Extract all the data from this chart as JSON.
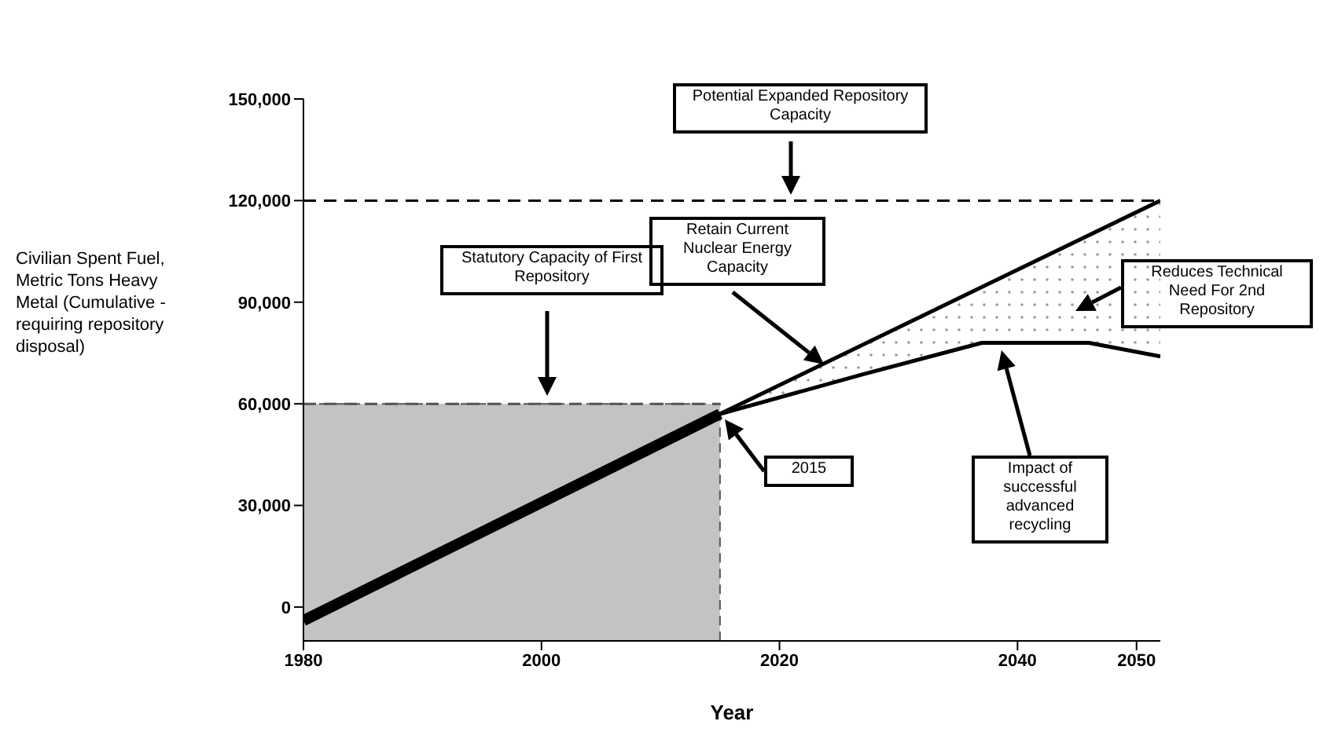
{
  "chart_data": {
    "type": "line",
    "xlabel": "Year",
    "ylabel": "Civilian Spent Fuel, Metric Tons Heavy Metal (Cumulative - requiring repository disposal)",
    "xlim": [
      1980,
      2052
    ],
    "xticks": [
      1980,
      2000,
      2020,
      2040,
      2050
    ],
    "ylim": [
      -10000,
      150000
    ],
    "yticks": [
      {
        "value": 0,
        "label": "0"
      },
      {
        "value": 30000,
        "label": "30,000"
      },
      {
        "value": 60000,
        "label": "60,000"
      },
      {
        "value": 90000,
        "label": "90,000"
      },
      {
        "value": 120000,
        "label": "120,000"
      },
      {
        "value": 150000,
        "label": "150,000"
      }
    ],
    "grid": false,
    "legend": false,
    "marker": "none",
    "series": [
      {
        "color": "#000000",
        "x": [
          1980,
          2015
        ],
        "values": [
          -4000,
          57000
        ]
      },
      {
        "color": "#000000",
        "x": [
          2015,
          2052
        ],
        "values": [
          57000,
          120000
        ]
      },
      {
        "color": "#000000",
        "x": [
          2015,
          2027,
          2037,
          2046,
          2052
        ],
        "values": [
          57000,
          68700,
          78000,
          78000,
          74000
        ],
        "lower": [
          57000,
          68700,
          78000,
          78000,
          74000
        ],
        "upper": [
          57000,
          77400,
          94500,
          109800,
          120000
        ]
      }
    ],
    "ref_lines": [
      {
        "axis": "y",
        "value": 60000,
        "line_style": "dashed",
        "color": "#555555"
      },
      {
        "axis": "y",
        "value": 120000,
        "label": "Potential Expanded Repository Capacity",
        "line_style": "dashed",
        "color": "#000000"
      }
    ],
    "bands": [
      {
        "axis": "x",
        "from": 1980,
        "to": 2015,
        "color": "#aaaaaa"
      }
    ],
    "annotations": [
      "Statutory Capacity of First Repository",
      "Retain Current Nuclear Energy Capacity",
      "2015",
      "Reduces Technical Need For 2nd Repository",
      "Impact of successful advanced recycling"
    ]
  }
}
